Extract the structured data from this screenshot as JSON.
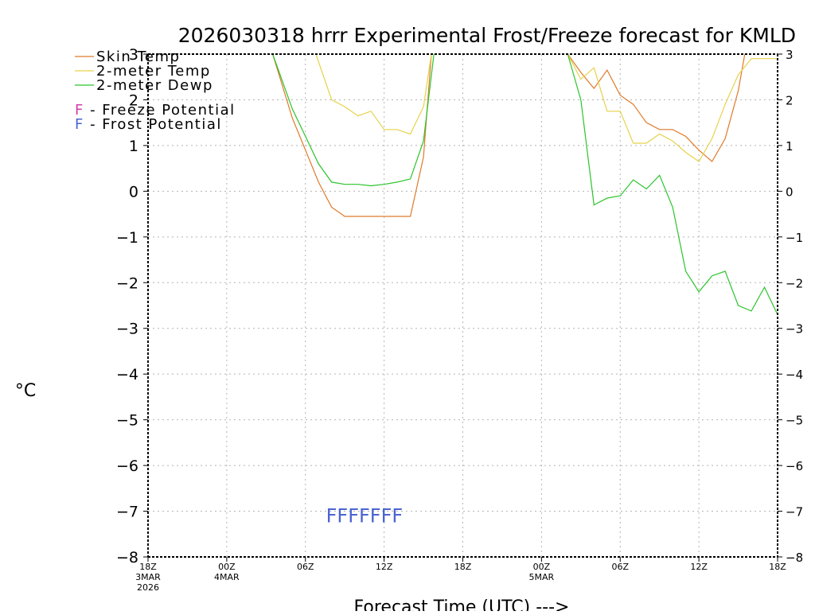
{
  "chart_data": {
    "type": "line",
    "title": "2026030318 hrrr Experimental Frost/Freeze forecast for KMLD",
    "xlabel": "Forecast Time (UTC) --->",
    "ylabel": "°C",
    "ylim": [
      -8,
      3
    ],
    "xlim": [
      0,
      48
    ],
    "yticks": [
      -8,
      -7,
      -6,
      -5,
      -4,
      -3,
      -2,
      -1,
      0,
      1,
      2,
      3
    ],
    "xticks": [
      {
        "x": 0,
        "lines": [
          "18Z",
          "3MAR",
          "2026"
        ]
      },
      {
        "x": 6,
        "lines": [
          "00Z",
          "4MAR"
        ]
      },
      {
        "x": 12,
        "lines": [
          "06Z"
        ]
      },
      {
        "x": 18,
        "lines": [
          "12Z"
        ]
      },
      {
        "x": 24,
        "lines": [
          "18Z"
        ]
      },
      {
        "x": 30,
        "lines": [
          "00Z",
          "5MAR"
        ]
      },
      {
        "x": 36,
        "lines": [
          "06Z"
        ]
      },
      {
        "x": 42,
        "lines": [
          "12Z"
        ]
      },
      {
        "x": 48,
        "lines": [
          "18Z"
        ]
      }
    ],
    "grid": true,
    "series": [
      {
        "name": "Skin Temp",
        "color": "#e07a2a",
        "points": [
          [
            9.5,
            3.0
          ],
          [
            11,
            1.6
          ],
          [
            12,
            0.9
          ],
          [
            13,
            0.2
          ],
          [
            14,
            -0.35
          ],
          [
            15,
            -0.55
          ],
          [
            16,
            -0.55
          ],
          [
            17,
            -0.55
          ],
          [
            18,
            -0.55
          ],
          [
            19,
            -0.55
          ],
          [
            20,
            -0.55
          ],
          [
            21,
            0.75
          ],
          [
            21.6,
            3.0
          ],
          [
            null,
            null
          ],
          [
            32,
            3.0
          ],
          [
            33,
            2.6
          ],
          [
            34,
            2.25
          ],
          [
            35,
            2.65
          ],
          [
            36,
            2.1
          ],
          [
            37,
            1.9
          ],
          [
            38,
            1.5
          ],
          [
            39,
            1.35
          ],
          [
            40,
            1.35
          ],
          [
            41,
            1.2
          ],
          [
            42,
            0.9
          ],
          [
            43,
            0.65
          ],
          [
            44,
            1.15
          ],
          [
            45,
            2.2
          ],
          [
            45.5,
            3.0
          ]
        ]
      },
      {
        "name": "2-meter Temp",
        "color": "#e6d24a",
        "points": [
          [
            12.8,
            3.0
          ],
          [
            14,
            2.0
          ],
          [
            15,
            1.85
          ],
          [
            16,
            1.65
          ],
          [
            17,
            1.75
          ],
          [
            18,
            1.35
          ],
          [
            19,
            1.35
          ],
          [
            20,
            1.25
          ],
          [
            21,
            1.85
          ],
          [
            21.6,
            3.0
          ],
          [
            null,
            null
          ],
          [
            32,
            3.0
          ],
          [
            33,
            2.45
          ],
          [
            34,
            2.7
          ],
          [
            35,
            1.75
          ],
          [
            36,
            1.75
          ],
          [
            37,
            1.05
          ],
          [
            38,
            1.05
          ],
          [
            39,
            1.25
          ],
          [
            40,
            1.1
          ],
          [
            41,
            0.85
          ],
          [
            42,
            0.65
          ],
          [
            43,
            1.15
          ],
          [
            44,
            1.9
          ],
          [
            45,
            2.55
          ],
          [
            46,
            2.9
          ],
          [
            48,
            2.9
          ]
        ]
      },
      {
        "name": "2-meter Dewp",
        "color": "#2bc42b",
        "points": [
          [
            9.5,
            3.0
          ],
          [
            11,
            1.8
          ],
          [
            12,
            1.2
          ],
          [
            13,
            0.6
          ],
          [
            14,
            0.2
          ],
          [
            15,
            0.15
          ],
          [
            16,
            0.15
          ],
          [
            17,
            0.12
          ],
          [
            18,
            0.15
          ],
          [
            19,
            0.2
          ],
          [
            20,
            0.27
          ],
          [
            21,
            1.1
          ],
          [
            21.8,
            3.0
          ],
          [
            null,
            null
          ],
          [
            32,
            3.0
          ],
          [
            33,
            2.0
          ],
          [
            34,
            -0.3
          ],
          [
            35,
            -0.15
          ],
          [
            36,
            -0.1
          ],
          [
            37,
            0.25
          ],
          [
            38,
            0.05
          ],
          [
            39,
            0.35
          ],
          [
            40,
            -0.35
          ],
          [
            41,
            -1.75
          ],
          [
            42,
            -2.2
          ],
          [
            43,
            -1.85
          ],
          [
            44,
            -1.75
          ],
          [
            45,
            -2.5
          ],
          [
            46,
            -2.62
          ],
          [
            47,
            -2.1
          ],
          [
            48,
            -2.7
          ]
        ]
      }
    ],
    "legend": {
      "position": "top-left",
      "items": [
        {
          "label": "Skin Temp",
          "color": "#e07a2a"
        },
        {
          "label": "2-meter Temp",
          "color": "#e6d24a"
        },
        {
          "label": "2-meter Dewp",
          "color": "#2bc42b"
        }
      ],
      "markers": [
        {
          "symbol": "F",
          "label": " - Freeze Potential",
          "color": "#d23fa8"
        },
        {
          "symbol": "F",
          "label": " - Frost Potential",
          "color": "#4a64d2"
        }
      ]
    },
    "annotations": [
      {
        "text": "FFFFFFF",
        "color": "#4a64d2",
        "x": 16.5,
        "y": -7.1
      }
    ]
  }
}
